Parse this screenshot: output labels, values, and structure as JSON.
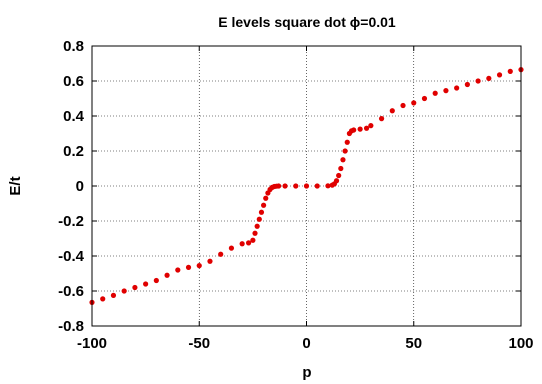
{
  "chart_data": {
    "type": "scatter",
    "title": "E levels square dot ϕ=0.01",
    "xlabel": "p",
    "ylabel": "E/t",
    "xlim": [
      -100,
      100
    ],
    "ylim": [
      -0.8,
      0.8
    ],
    "x_ticks": [
      "-100",
      "-50",
      "0",
      "50",
      "100"
    ],
    "y_ticks": [
      "0.8",
      "0.6",
      "0.4",
      "0.2",
      "0",
      "-0.2",
      "-0.4",
      "-0.6",
      "-0.8"
    ],
    "grid": true,
    "legend": "none",
    "marker_color": "#e00000",
    "series": [
      {
        "x": [
          -100,
          -95,
          -90,
          -85,
          -80,
          -75,
          -70,
          -65,
          -60,
          -55,
          -50,
          -45,
          -40,
          -35,
          -30,
          -27,
          -25,
          -24,
          -23,
          -22,
          -21,
          -20,
          -19,
          -18,
          -17,
          -16,
          -15,
          -14,
          -13,
          -10,
          -5,
          0,
          5,
          10,
          12,
          13,
          14,
          15,
          16,
          17,
          18,
          19,
          20,
          21,
          22,
          25,
          28,
          30,
          35,
          40,
          45,
          50,
          55,
          60,
          65,
          70,
          75,
          80,
          85,
          90,
          95,
          100
        ],
        "y": [
          -0.665,
          -0.645,
          -0.625,
          -0.6,
          -0.58,
          -0.56,
          -0.54,
          -0.51,
          -0.48,
          -0.465,
          -0.455,
          -0.43,
          -0.39,
          -0.355,
          -0.33,
          -0.325,
          -0.31,
          -0.27,
          -0.23,
          -0.19,
          -0.15,
          -0.11,
          -0.07,
          -0.04,
          -0.02,
          -0.008,
          -0.003,
          -0.001,
          0,
          0,
          0,
          0,
          0,
          0.001,
          0.005,
          0.012,
          0.03,
          0.06,
          0.1,
          0.15,
          0.2,
          0.25,
          0.3,
          0.315,
          0.32,
          0.325,
          0.33,
          0.345,
          0.385,
          0.43,
          0.46,
          0.475,
          0.5,
          0.53,
          0.545,
          0.56,
          0.58,
          0.6,
          0.615,
          0.635,
          0.655,
          0.665
        ]
      }
    ]
  }
}
